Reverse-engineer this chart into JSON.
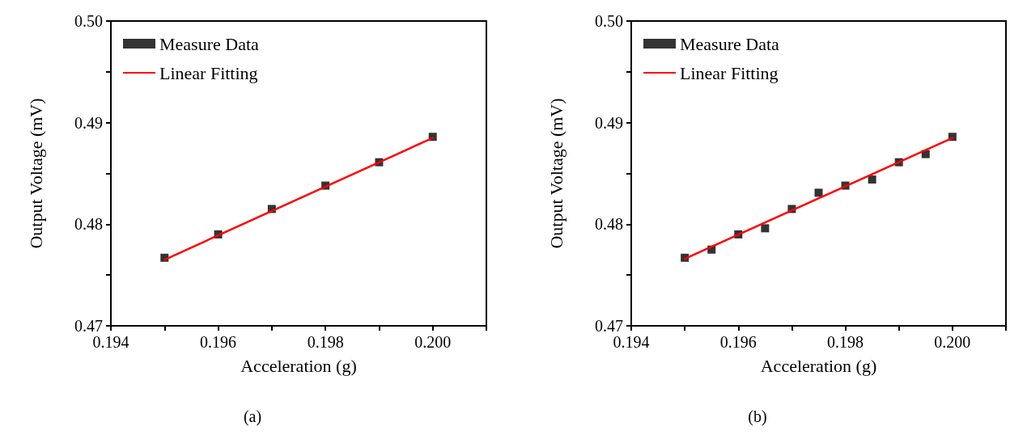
{
  "chart_data": [
    {
      "type": "scatter",
      "xlabel": "Acceleration (g)",
      "ylabel": "Output Voltage (mV)",
      "annotations": [
        "(a)"
      ],
      "xlim": [
        0.194,
        0.201
      ],
      "xticks": [
        0.194,
        {
          "value": 0.195,
          "label": null
        },
        {
          "value": 0.196,
          "label": "0.196"
        },
        {
          "value": 0.197,
          "label": null
        },
        {
          "value": 0.198,
          "label": "0.198"
        },
        {
          "value": 0.199,
          "label": null
        },
        {
          "value": 0.2,
          "label": "0.200"
        },
        {
          "value": 0.201,
          "label": null
        }
      ],
      "ylim": [
        0.47,
        0.5
      ],
      "yticks": [
        0.47,
        {
          "value": 0.475,
          "label": null
        },
        0.48,
        {
          "value": 0.485,
          "label": null
        },
        0.49,
        {
          "value": 0.495,
          "label": null
        },
        {
          "value": 0.5,
          "label": "0.50"
        }
      ],
      "legend": "top left",
      "grid": false,
      "series": [
        {
          "name": "Measure Data",
          "marker": "square",
          "color": "#000000",
          "x": [
            0.195,
            0.196,
            0.197,
            0.198,
            0.199,
            0.2
          ],
          "values": [
            0.4767,
            0.479,
            0.4815,
            0.4838,
            0.4861,
            0.4886
          ]
        },
        {
          "name": "Linear Fitting",
          "type": "line",
          "marker": "none",
          "line_style": "solid",
          "color": "#ff0000",
          "x": [
            0.195,
            0.2
          ],
          "values": [
            0.4765,
            0.4885
          ]
        }
      ]
    },
    {
      "type": "scatter",
      "xlabel": "Acceleration (g)",
      "ylabel": "Output Voltage (mV)",
      "annotations": [
        "(b)"
      ],
      "xlim": [
        0.194,
        0.201
      ],
      "xticks": [
        0.194,
        {
          "value": 0.195,
          "label": null
        },
        {
          "value": 0.196,
          "label": "0.196"
        },
        {
          "value": 0.197,
          "label": null
        },
        {
          "value": 0.198,
          "label": "0.198"
        },
        {
          "value": 0.199,
          "label": null
        },
        {
          "value": 0.2,
          "label": "0.200"
        },
        {
          "value": 0.201,
          "label": null
        }
      ],
      "ylim": [
        0.47,
        0.5
      ],
      "yticks": [
        0.47,
        {
          "value": 0.475,
          "label": null
        },
        0.48,
        {
          "value": 0.485,
          "label": null
        },
        0.49,
        {
          "value": 0.495,
          "label": null
        },
        {
          "value": 0.5,
          "label": "0.50"
        }
      ],
      "legend": "top left",
      "grid": false,
      "series": [
        {
          "name": "Measure Data",
          "marker": "square",
          "color": "#000000",
          "x": [
            0.195,
            0.1955,
            0.196,
            0.1965,
            0.197,
            0.1975,
            0.198,
            0.1985,
            0.199,
            0.1995,
            0.2
          ],
          "values": [
            0.4767,
            0.4775,
            0.479,
            0.4796,
            0.4815,
            0.4831,
            0.4838,
            0.4844,
            0.4861,
            0.4869,
            0.4886
          ]
        },
        {
          "name": "Linear Fitting",
          "type": "line",
          "marker": "none",
          "line_style": "solid",
          "color": "#ff0000",
          "x": [
            0.195,
            0.2
          ],
          "values": [
            0.4766,
            0.4885
          ]
        }
      ]
    }
  ]
}
